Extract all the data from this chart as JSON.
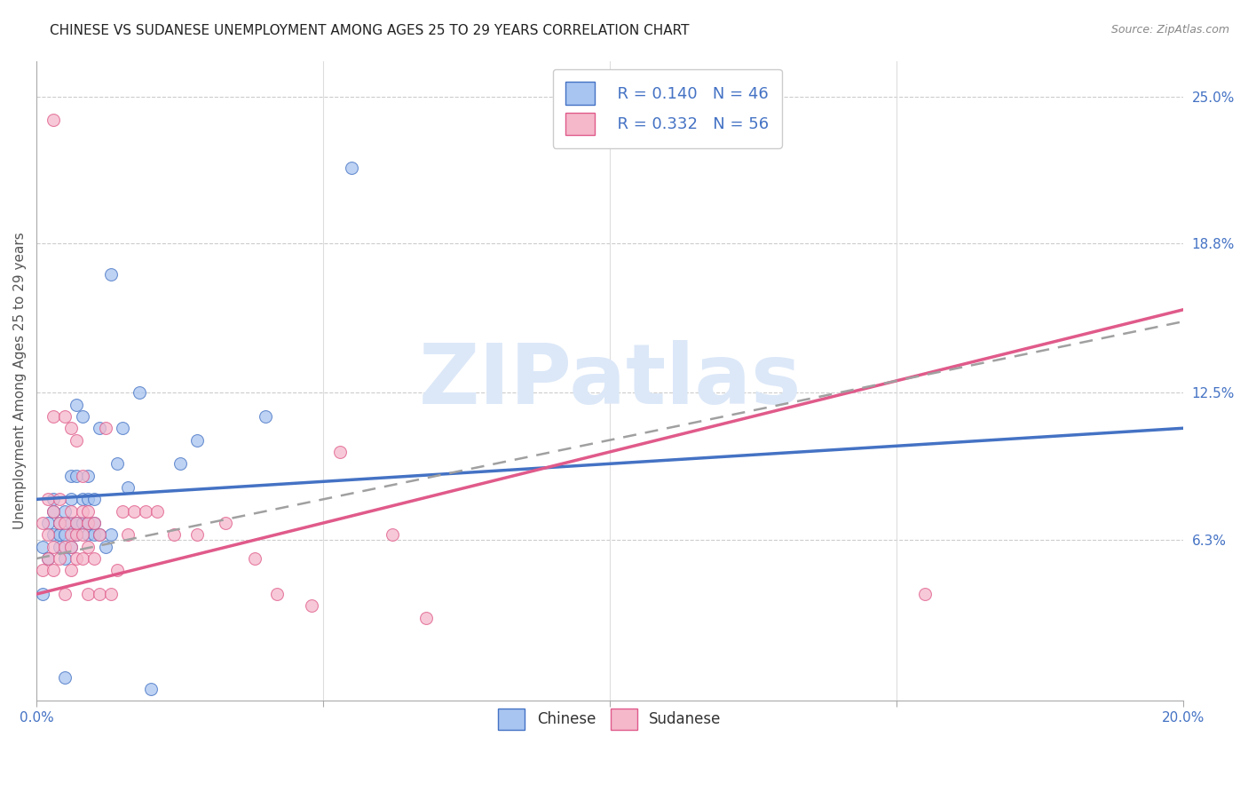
{
  "title": "CHINESE VS SUDANESE UNEMPLOYMENT AMONG AGES 25 TO 29 YEARS CORRELATION CHART",
  "source": "Source: ZipAtlas.com",
  "ylabel": "Unemployment Among Ages 25 to 29 years",
  "xlim": [
    0,
    0.2
  ],
  "ylim": [
    -0.005,
    0.265
  ],
  "yticks_right": [
    0.063,
    0.125,
    0.188,
    0.25
  ],
  "yticks_right_labels": [
    "6.3%",
    "12.5%",
    "18.8%",
    "25.0%"
  ],
  "legend_chinese_R": "R = 0.140",
  "legend_chinese_N": "N = 46",
  "legend_sudanese_R": "R = 0.332",
  "legend_sudanese_N": "N = 56",
  "chinese_color": "#a8c4f0",
  "sudanese_color": "#f5b8cb",
  "chinese_line_color": "#4472c4",
  "sudanese_line_color": "#e05a8a",
  "trend_line_color": "#a0a0a0",
  "watermark": "ZIPatlas",
  "watermark_color": "#dce8f8",
  "background_color": "#ffffff",
  "title_fontsize": 11,
  "chinese_x": [
    0.001,
    0.001,
    0.002,
    0.002,
    0.003,
    0.003,
    0.003,
    0.004,
    0.004,
    0.004,
    0.005,
    0.005,
    0.005,
    0.005,
    0.006,
    0.006,
    0.006,
    0.006,
    0.007,
    0.007,
    0.007,
    0.007,
    0.008,
    0.008,
    0.008,
    0.009,
    0.009,
    0.009,
    0.009,
    0.01,
    0.01,
    0.01,
    0.011,
    0.011,
    0.012,
    0.013,
    0.013,
    0.014,
    0.015,
    0.016,
    0.018,
    0.02,
    0.025,
    0.028,
    0.04,
    0.055
  ],
  "chinese_y": [
    0.04,
    0.06,
    0.055,
    0.07,
    0.065,
    0.075,
    0.08,
    0.06,
    0.065,
    0.07,
    0.005,
    0.055,
    0.065,
    0.075,
    0.06,
    0.07,
    0.08,
    0.09,
    0.065,
    0.07,
    0.09,
    0.12,
    0.07,
    0.08,
    0.115,
    0.065,
    0.07,
    0.08,
    0.09,
    0.065,
    0.07,
    0.08,
    0.065,
    0.11,
    0.06,
    0.065,
    0.175,
    0.095,
    0.11,
    0.085,
    0.125,
    0.0,
    0.095,
    0.105,
    0.115,
    0.22
  ],
  "sudanese_x": [
    0.001,
    0.001,
    0.002,
    0.002,
    0.002,
    0.003,
    0.003,
    0.003,
    0.003,
    0.004,
    0.004,
    0.004,
    0.005,
    0.005,
    0.005,
    0.005,
    0.006,
    0.006,
    0.006,
    0.006,
    0.006,
    0.007,
    0.007,
    0.007,
    0.007,
    0.008,
    0.008,
    0.008,
    0.008,
    0.009,
    0.009,
    0.009,
    0.009,
    0.01,
    0.01,
    0.011,
    0.011,
    0.012,
    0.013,
    0.014,
    0.015,
    0.016,
    0.017,
    0.019,
    0.021,
    0.024,
    0.028,
    0.033,
    0.038,
    0.042,
    0.048,
    0.053,
    0.062,
    0.068,
    0.155,
    0.003
  ],
  "sudanese_y": [
    0.05,
    0.07,
    0.055,
    0.065,
    0.08,
    0.05,
    0.06,
    0.075,
    0.115,
    0.055,
    0.07,
    0.08,
    0.04,
    0.06,
    0.07,
    0.115,
    0.05,
    0.06,
    0.065,
    0.075,
    0.11,
    0.055,
    0.065,
    0.07,
    0.105,
    0.055,
    0.065,
    0.075,
    0.09,
    0.04,
    0.06,
    0.07,
    0.075,
    0.055,
    0.07,
    0.04,
    0.065,
    0.11,
    0.04,
    0.05,
    0.075,
    0.065,
    0.075,
    0.075,
    0.075,
    0.065,
    0.065,
    0.07,
    0.055,
    0.04,
    0.035,
    0.1,
    0.065,
    0.03,
    0.04,
    0.24
  ],
  "chinese_trend_x0": 0.0,
  "chinese_trend_x1": 0.2,
  "chinese_trend_y0": 0.08,
  "chinese_trend_y1": 0.11,
  "sudanese_trend_x0": 0.0,
  "sudanese_trend_x1": 0.2,
  "sudanese_trend_y0": 0.04,
  "sudanese_trend_y1": 0.16,
  "gray_trend_y0": 0.055,
  "gray_trend_y1": 0.155
}
